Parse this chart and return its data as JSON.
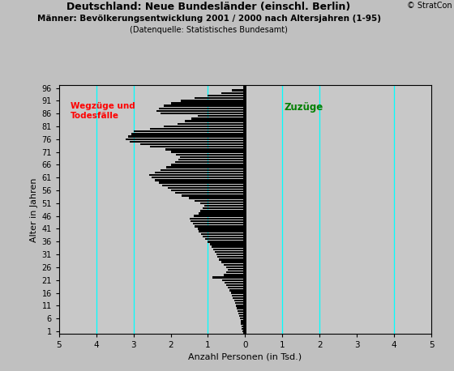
{
  "title_line1": "Deutschland: Neue Bundesländer (einschl. Berlin)",
  "title_line2": "Männer: Bevölkerungsentwicklung 2001 / 2000 nach Altersjahren (1-95)",
  "title_line3": "(Datenquelle: Statistisches Bundesamt)",
  "copyright": "© StratCon",
  "xlabel": "Anzahl Personen (in Tsd.)",
  "ylabel": "Alter in Jahren",
  "label_wegzuege": "Wegzüge und\nTodesfälle",
  "label_zugzuege": "Zuzüge",
  "xlim": [
    -5,
    5
  ],
  "ylim": [
    0.0,
    97.0
  ],
  "xticks": [
    -5,
    -4,
    -3,
    -2,
    -1,
    0,
    1,
    2,
    3,
    4,
    5
  ],
  "xticklabels": [
    "5",
    "4",
    "3",
    "2",
    "1",
    "0",
    "1",
    "2",
    "3",
    "4",
    "5"
  ],
  "yticks": [
    1,
    6,
    11,
    16,
    21,
    26,
    31,
    36,
    41,
    46,
    51,
    56,
    61,
    66,
    71,
    76,
    81,
    86,
    91,
    96
  ],
  "cyan_lines_x": [
    -4,
    -3,
    -1,
    1,
    2,
    4
  ],
  "bar_color": "#000000",
  "bg_color": "#c8c8c8",
  "fig_bg_color": "#c0c0c0",
  "values": [
    -0.08,
    -0.09,
    -0.1,
    -0.11,
    -0.12,
    -0.14,
    -0.16,
    -0.18,
    -0.2,
    -0.22,
    -0.25,
    -0.28,
    -0.3,
    -0.33,
    -0.35,
    -0.38,
    -0.42,
    -0.46,
    -0.5,
    -0.55,
    -0.62,
    -0.88,
    -0.58,
    -0.5,
    -0.46,
    -0.52,
    -0.58,
    -0.64,
    -0.7,
    -0.74,
    -0.78,
    -0.82,
    -0.85,
    -0.9,
    -0.95,
    -1.02,
    -1.08,
    -1.14,
    -1.18,
    -1.24,
    -1.28,
    -1.35,
    -1.4,
    -1.46,
    -1.5,
    -1.38,
    -1.26,
    -1.2,
    -1.15,
    -1.1,
    -1.2,
    -1.35,
    -1.52,
    -1.7,
    -1.88,
    -1.98,
    -2.08,
    -2.22,
    -2.32,
    -2.42,
    -2.52,
    -2.58,
    -2.42,
    -2.28,
    -2.12,
    -1.98,
    -1.88,
    -1.8,
    -1.75,
    -1.85,
    -2.0,
    -2.15,
    -2.55,
    -2.82,
    -3.1,
    -3.2,
    -3.15,
    -3.05,
    -3.0,
    -2.55,
    -2.18,
    -1.82,
    -1.62,
    -1.45,
    -1.28,
    -2.28,
    -2.38,
    -2.32,
    -2.18,
    -2.0,
    -1.72,
    -1.36,
    -1.0,
    -0.64,
    -0.36
  ]
}
